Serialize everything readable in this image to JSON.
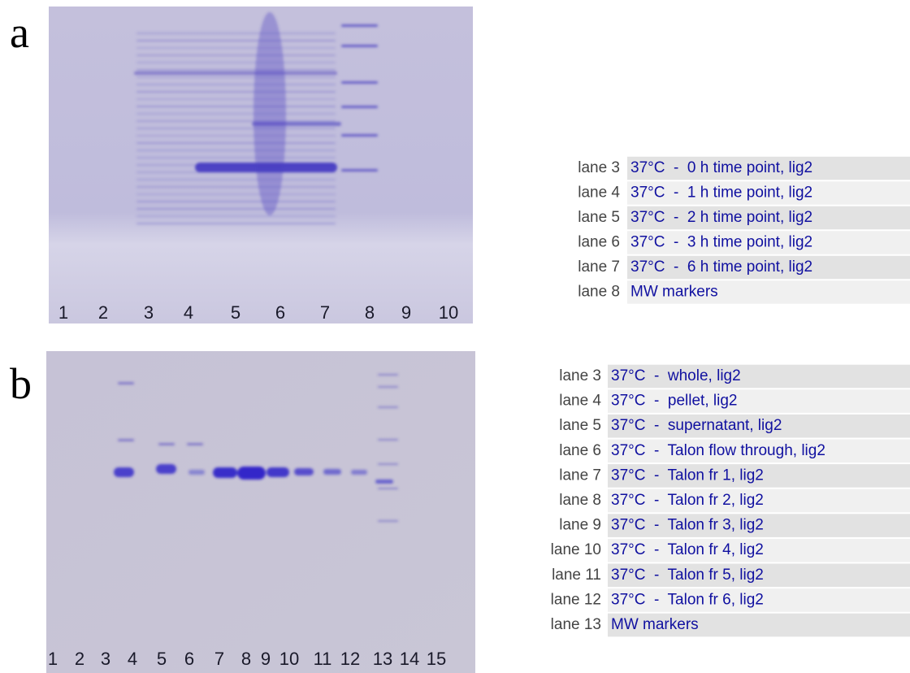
{
  "panels": [
    {
      "label": "a",
      "lanes": [
        "1",
        "2",
        "3",
        "4",
        "5",
        "6",
        "7",
        "8",
        "9",
        "10"
      ],
      "table": [
        {
          "lane": "lane 3",
          "desc": "37°C  -  0 h time point, lig2"
        },
        {
          "lane": "lane 4",
          "desc": "37°C  -  1 h time point, lig2"
        },
        {
          "lane": "lane 5",
          "desc": "37°C  -  2 h time point, lig2"
        },
        {
          "lane": "lane 6",
          "desc": "37°C  -  3 h time point, lig2"
        },
        {
          "lane": "lane 7",
          "desc": "37°C  -  6 h time point, lig2"
        },
        {
          "lane": "lane 8",
          "desc": "MW markers"
        }
      ]
    },
    {
      "label": "b",
      "lanes": [
        "1",
        "2",
        "3",
        "4",
        "5",
        "6",
        "7",
        "8",
        "9",
        "10",
        "11",
        "12",
        "13",
        "14",
        "15"
      ],
      "table": [
        {
          "lane": "lane 3",
          "desc": "37°C  -  whole, lig2"
        },
        {
          "lane": "lane 4",
          "desc": "37°C  -  pellet, lig2"
        },
        {
          "lane": "lane 5",
          "desc": "37°C  -  supernatant, lig2"
        },
        {
          "lane": "lane 6",
          "desc": "37°C  -  Talon flow through, lig2"
        },
        {
          "lane": "lane 7",
          "desc": "37°C  -  Talon fr 1, lig2"
        },
        {
          "lane": "lane 8",
          "desc": "37°C  -  Talon fr 2, lig2"
        },
        {
          "lane": "lane 9",
          "desc": "37°C  -  Talon fr 3, lig2"
        },
        {
          "lane": "lane 10",
          "desc": "37°C  -  Talon fr 4, lig2"
        },
        {
          "lane": "lane 11",
          "desc": "37°C  -  Talon fr 5, lig2"
        },
        {
          "lane": "lane 12",
          "desc": "37°C  -  Talon fr 6, lig2"
        },
        {
          "lane": "lane 13",
          "desc": "MW markers"
        }
      ]
    }
  ]
}
